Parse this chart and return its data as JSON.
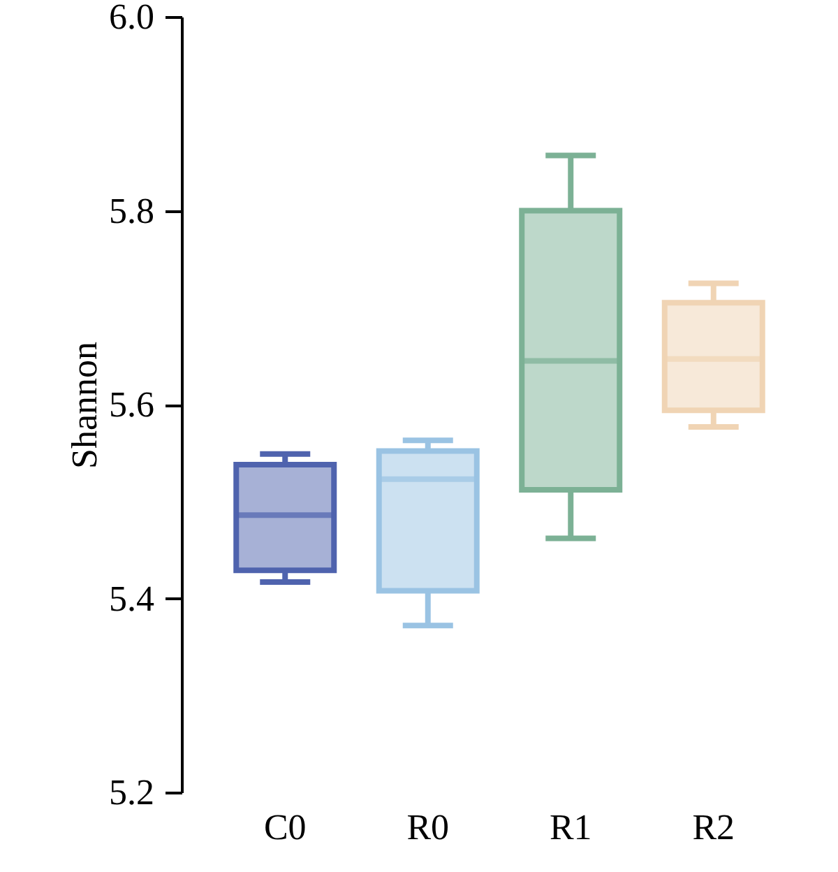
{
  "chart_data": {
    "type": "box",
    "ylabel": "Shannon",
    "categories": [
      "C0",
      "R0",
      "R1",
      "R2"
    ],
    "colors": [
      "#4f63ae",
      "#9ac3e3",
      "#7cb195",
      "#f0d4b4"
    ],
    "boxes": [
      {
        "low": 5.417,
        "q1": 5.429,
        "median": 5.486,
        "q3": 5.538,
        "high": 5.549
      },
      {
        "low": 5.372,
        "q1": 5.408,
        "median": 5.523,
        "q3": 5.552,
        "high": 5.563
      },
      {
        "low": 5.462,
        "q1": 5.512,
        "median": 5.645,
        "q3": 5.8,
        "high": 5.857
      },
      {
        "low": 5.577,
        "q1": 5.594,
        "median": 5.647,
        "q3": 5.705,
        "high": 5.725
      }
    ],
    "ylim": [
      5.2,
      6.0
    ],
    "yticks": [
      5.2,
      5.4,
      5.6,
      5.8,
      {
        "value": 6,
        "label": "6.0"
      }
    ],
    "grid": false
  }
}
